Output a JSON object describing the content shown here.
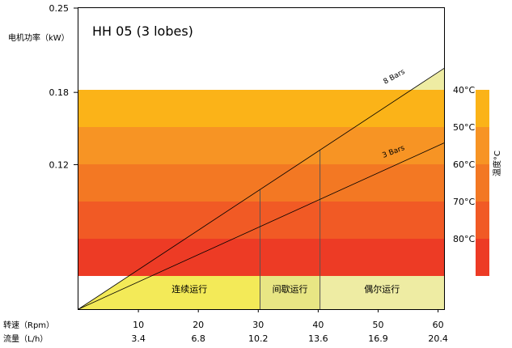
{
  "chart_data": {
    "type": "area",
    "title": "HH 05 (3 lobes)",
    "ylabel": "电机功率（kW）",
    "ylim": [
      0,
      0.25
    ],
    "xlim": [
      0,
      61
    ],
    "y_ticks": [
      {
        "value": 0.25,
        "label": "0.25"
      },
      {
        "value": 0.18,
        "label": "0.18"
      },
      {
        "value": 0.12,
        "label": "0.12"
      }
    ],
    "x_axis_rpm": {
      "label": "转速（Rpm）",
      "ticks": [
        10,
        20,
        30,
        40,
        50,
        60
      ]
    },
    "x_axis_flow": {
      "label": "流量（L/h）",
      "ticks": [
        "3.4",
        "6.8",
        "10.2",
        "13.6",
        "16.9",
        "20.4"
      ]
    },
    "series": [
      {
        "name": "8 Bars",
        "points": [
          [
            0,
            0
          ],
          [
            61,
            0.2
          ]
        ]
      },
      {
        "name": "3 Bars",
        "points": [
          [
            0,
            0
          ],
          [
            61,
            0.138
          ]
        ]
      }
    ],
    "regions": [
      {
        "label": "连续运行",
        "x_range": [
          0,
          30.3
        ],
        "color": "#f3ea58"
      },
      {
        "label": "间歇运行",
        "x_range": [
          30.3,
          40.3
        ],
        "color": "#e8e684"
      },
      {
        "label": "偶尔运行",
        "x_range": [
          40.3,
          61
        ],
        "color": "#eeeca3"
      }
    ],
    "temperature_bands": [
      {
        "label": "40°C",
        "color": "#fbb318"
      },
      {
        "label": "50°C",
        "color": "#f79424"
      },
      {
        "label": "60°C",
        "color": "#f37823"
      },
      {
        "label": "70°C",
        "color": "#f15a25"
      },
      {
        "label": "80°C",
        "color": "#ed3b25"
      }
    ],
    "temperature_label": "温度°C"
  }
}
